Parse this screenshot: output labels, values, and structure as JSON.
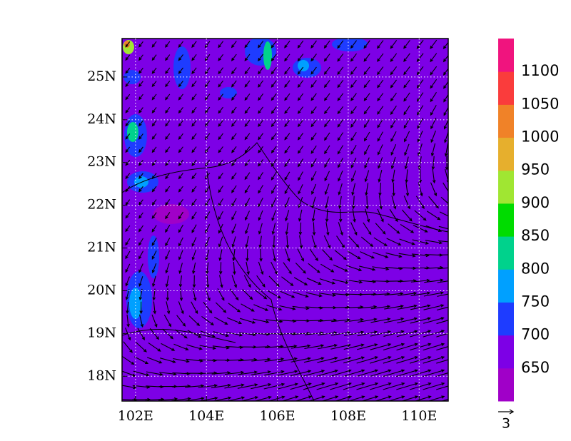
{
  "chart_data": {
    "type": "vector-map",
    "xlim": [
      101.62,
      110.82
    ],
    "ylim": [
      17.42,
      25.9
    ],
    "xticks": [
      {
        "value": 102,
        "label": "102E"
      },
      {
        "value": 104,
        "label": "104E"
      },
      {
        "value": 106,
        "label": "106E"
      },
      {
        "value": 108,
        "label": "108E"
      },
      {
        "value": 110,
        "label": "110E"
      }
    ],
    "yticks": [
      {
        "value": 18,
        "label": "18N"
      },
      {
        "value": 19,
        "label": "19N"
      },
      {
        "value": 20,
        "label": "20N"
      },
      {
        "value": 21,
        "label": "21N"
      },
      {
        "value": 22,
        "label": "22N"
      },
      {
        "value": 23,
        "label": "23N"
      },
      {
        "value": 24,
        "label": "24N"
      },
      {
        "value": 25,
        "label": "25N"
      }
    ],
    "grid": true,
    "colorbar": {
      "levels": [
        650,
        700,
        750,
        800,
        850,
        900,
        950,
        1000,
        1050,
        1100
      ],
      "colors": [
        "#a000c8",
        "#7d00e6",
        "#1e3cff",
        "#00a0ff",
        "#00d28c",
        "#00dc00",
        "#a0e632",
        "#e6af2d",
        "#f08228",
        "#fa3c3c",
        "#f0147e"
      ]
    },
    "reference_vector": {
      "value": 3
    }
  }
}
